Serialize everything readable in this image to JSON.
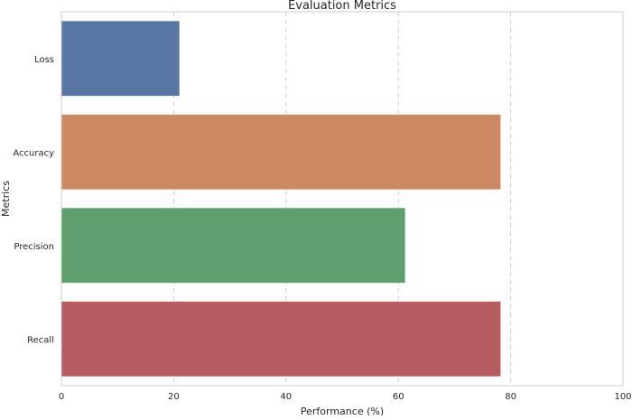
{
  "chart_data": {
    "type": "bar",
    "orientation": "horizontal",
    "title": "Evaluation Metrics",
    "xlabel": "Performance (%)",
    "ylabel": "Metrics",
    "categories": [
      "Loss",
      "Accuracy",
      "Precision",
      "Recall"
    ],
    "values": [
      21,
      78.2,
      61.2,
      78.2
    ],
    "colors": [
      "#5975a4",
      "#cc8963",
      "#5f9e6e",
      "#b55d60"
    ],
    "xlim": [
      0,
      100
    ],
    "xticks": [
      0,
      20,
      40,
      60,
      80,
      100
    ],
    "grid": "x dashed"
  }
}
